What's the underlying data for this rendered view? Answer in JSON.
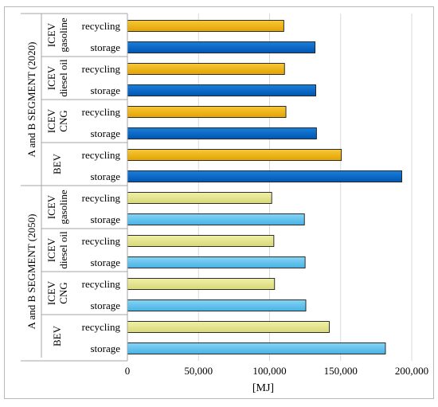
{
  "chart_data": {
    "type": "bar",
    "orientation": "horizontal",
    "title": "",
    "xlabel": "[MJ]",
    "ylabel": "",
    "xlim": [
      0,
      200000
    ],
    "x_ticks": [
      0,
      50000,
      100000,
      150000,
      200000
    ],
    "x_tick_labels": [
      "0",
      "50,000",
      "100,000",
      "150,000",
      "200,000"
    ],
    "grid": "vertical",
    "legend": "none",
    "segments": [
      {
        "label": "A and B SEGMENT (2020)",
        "colors": {
          "recycling": "#f0b000",
          "storage": "#0066cc"
        },
        "groups": [
          {
            "label": [
              "ICEV",
              "gasoline"
            ],
            "bars": [
              {
                "name": "recycling",
                "value": 110000
              },
              {
                "name": "storage",
                "value": 132000
              }
            ]
          },
          {
            "label": [
              "ICEV",
              "diesel oil"
            ],
            "bars": [
              {
                "name": "recycling",
                "value": 110500
              },
              {
                "name": "storage",
                "value": 132500
              }
            ]
          },
          {
            "label": [
              "ICEV",
              "CNG"
            ],
            "bars": [
              {
                "name": "recycling",
                "value": 111500
              },
              {
                "name": "storage",
                "value": 133000
              }
            ]
          },
          {
            "label": [
              "BEV"
            ],
            "bars": [
              {
                "name": "recycling",
                "value": 150500
              },
              {
                "name": "storage",
                "value": 193000
              }
            ]
          }
        ]
      },
      {
        "label": "A and B SEGMENT (2050)",
        "colors": {
          "recycling": "#e8e890",
          "storage": "#66c4ee"
        },
        "groups": [
          {
            "label": [
              "ICEV",
              "gasoline"
            ],
            "bars": [
              {
                "name": "recycling",
                "value": 101500
              },
              {
                "name": "storage",
                "value": 124500
              }
            ]
          },
          {
            "label": [
              "ICEV",
              "diesel oil"
            ],
            "bars": [
              {
                "name": "recycling",
                "value": 103000
              },
              {
                "name": "storage",
                "value": 125000
              }
            ]
          },
          {
            "label": [
              "ICEV",
              "CNG"
            ],
            "bars": [
              {
                "name": "recycling",
                "value": 103500
              },
              {
                "name": "storage",
                "value": 125500
              }
            ]
          },
          {
            "label": [
              "BEV"
            ],
            "bars": [
              {
                "name": "recycling",
                "value": 142000
              },
              {
                "name": "storage",
                "value": 181500
              }
            ]
          }
        ]
      }
    ]
  }
}
